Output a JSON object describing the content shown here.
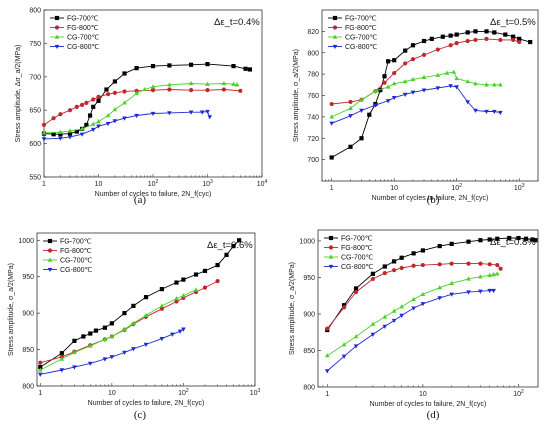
{
  "chart_data": [
    {
      "type": "line",
      "panel_label": "(a)",
      "annotation": "Δε_t=0.4%",
      "xlabel": "Number of cycles to failure, 2N_f(cyc)",
      "ylabel": "Stress amplitude, Δσ_a/2(MPa)",
      "xscale": "log",
      "xlim": [
        1,
        10000
      ],
      "ylim": [
        550,
        800
      ],
      "yticks": [
        550,
        600,
        650,
        700,
        750,
        800
      ],
      "legend_position": "top-left",
      "series": [
        {
          "name": "FG-700℃",
          "color": "#000000",
          "marker": "square",
          "x": [
            1,
            1.5,
            2,
            3,
            4,
            5,
            6,
            7,
            8,
            10,
            14,
            20,
            30,
            50,
            100,
            200,
            500,
            1000,
            3000,
            5000,
            6000
          ],
          "y": [
            615,
            614,
            614,
            615,
            618,
            622,
            628,
            642,
            655,
            664,
            681,
            693,
            705,
            713,
            716,
            717,
            718,
            719,
            716,
            712,
            711
          ]
        },
        {
          "name": "FG-800℃",
          "color": "#c0282d",
          "marker": "circle",
          "x": [
            1,
            1.5,
            2,
            3,
            4,
            5,
            6,
            8,
            10,
            15,
            20,
            30,
            50,
            100,
            200,
            500,
            1000,
            2000,
            4000
          ],
          "y": [
            628,
            638,
            644,
            650,
            655,
            658,
            661,
            666,
            670,
            674,
            676,
            678,
            679,
            680,
            681,
            680,
            680,
            681,
            679
          ]
        },
        {
          "name": "CG-700℃",
          "color": "#4cd02c",
          "marker": "triangle-up",
          "x": [
            1,
            2,
            3,
            5,
            8,
            10,
            15,
            20,
            30,
            50,
            70,
            100,
            200,
            500,
            1000,
            2000,
            3000,
            3500
          ],
          "y": [
            616,
            617,
            619,
            622,
            629,
            633,
            642,
            651,
            661,
            675,
            681,
            685,
            688,
            690,
            689,
            690,
            689,
            688
          ]
        },
        {
          "name": "CG-800℃",
          "color": "#1f2bd1",
          "marker": "triangle-down",
          "x": [
            1,
            2,
            3,
            5,
            8,
            10,
            15,
            20,
            30,
            50,
            100,
            200,
            500,
            800,
            1000,
            1100
          ],
          "y": [
            607,
            608,
            610,
            614,
            621,
            626,
            630,
            634,
            638,
            642,
            645,
            646,
            647,
            647,
            648,
            640
          ]
        }
      ]
    },
    {
      "type": "line",
      "panel_label": "(b)",
      "annotation": "Δε_t=0.5%",
      "xlabel": "Number of cycles to failure, 2N_f(cyc)",
      "ylabel": "Stress amplitude, σ_a/2(MPa)",
      "xscale": "log",
      "xlim": [
        0.7,
        2000
      ],
      "ylim": [
        680,
        840
      ],
      "yticks": [
        700,
        720,
        740,
        760,
        780,
        800,
        820
      ],
      "legend_position": "top-left",
      "series": [
        {
          "name": "FG-700℃",
          "color": "#000000",
          "marker": "square",
          "x": [
            1,
            2,
            3,
            4,
            5,
            6,
            7,
            8,
            10,
            15,
            20,
            30,
            40,
            60,
            80,
            100,
            150,
            200,
            300,
            400,
            600,
            800,
            1000,
            1500
          ],
          "y": [
            702,
            712,
            720,
            742,
            752,
            765,
            778,
            792,
            793,
            802,
            807,
            811,
            813,
            815,
            816,
            817,
            819,
            820,
            820,
            819,
            817,
            815,
            813,
            810
          ]
        },
        {
          "name": "FG-800℃",
          "color": "#c0282d",
          "marker": "circle",
          "x": [
            1,
            2,
            3,
            5,
            7,
            10,
            15,
            20,
            30,
            50,
            80,
            100,
            150,
            200,
            300,
            500,
            800,
            1000
          ],
          "y": [
            752,
            754,
            756,
            764,
            772,
            781,
            790,
            794,
            798,
            803,
            807,
            809,
            811,
            812,
            813,
            812,
            812,
            810
          ]
        },
        {
          "name": "CG-700℃",
          "color": "#4cd02c",
          "marker": "triangle-up",
          "x": [
            1,
            2,
            3,
            5,
            8,
            10,
            15,
            20,
            30,
            50,
            70,
            90,
            100,
            150,
            200,
            300,
            400,
            500
          ],
          "y": [
            740,
            748,
            756,
            764,
            768,
            771,
            773,
            775,
            777,
            779,
            781,
            782,
            776,
            773,
            771,
            770,
            770,
            770
          ]
        },
        {
          "name": "CG-800℃",
          "color": "#1f2bd1",
          "marker": "triangle-down",
          "x": [
            1,
            2,
            3,
            5,
            8,
            10,
            15,
            20,
            30,
            50,
            80,
            100,
            150,
            200,
            300,
            400,
            500
          ],
          "y": [
            734,
            741,
            746,
            751,
            755,
            758,
            761,
            763,
            765,
            767,
            769,
            768,
            754,
            746,
            745,
            745,
            744
          ]
        }
      ]
    },
    {
      "type": "line",
      "panel_label": "(c)",
      "annotation": "Δε_t=0.6%",
      "xlabel": "Number of cycles to failure, 2N_f(cyc)",
      "ylabel": "Stress amplitude, σ_a/2(MPa)",
      "xscale": "log",
      "xlim": [
        0.9,
        1000
      ],
      "ylim": [
        800,
        1010
      ],
      "yticks": [
        800,
        850,
        900,
        950,
        1000
      ],
      "legend_position": "top-left",
      "series": [
        {
          "name": "FG-700℃",
          "color": "#000000",
          "marker": "square",
          "x": [
            1,
            2,
            3,
            4,
            5,
            6,
            8,
            10,
            15,
            20,
            30,
            50,
            80,
            100,
            150,
            200,
            300,
            400,
            500,
            600
          ],
          "y": [
            826,
            845,
            862,
            868,
            872,
            876,
            880,
            886,
            900,
            910,
            922,
            933,
            942,
            946,
            953,
            958,
            966,
            980,
            992,
            1000
          ]
        },
        {
          "name": "FG-800℃",
          "color": "#c0282d",
          "marker": "circle",
          "x": [
            1,
            2,
            3,
            5,
            8,
            10,
            15,
            20,
            30,
            50,
            80,
            100,
            150,
            200,
            300
          ],
          "y": [
            832,
            840,
            847,
            856,
            864,
            868,
            877,
            885,
            895,
            906,
            916,
            921,
            929,
            935,
            944
          ]
        },
        {
          "name": "CG-700℃",
          "color": "#4cd02c",
          "marker": "triangle-up",
          "x": [
            1,
            2,
            3,
            5,
            8,
            10,
            15,
            20,
            30,
            50,
            80,
            100,
            150
          ],
          "y": [
            822,
            837,
            846,
            855,
            864,
            868,
            878,
            886,
            897,
            910,
            920,
            924,
            932
          ]
        },
        {
          "name": "CG-800℃",
          "color": "#1f2bd1",
          "marker": "triangle-down",
          "x": [
            1,
            2,
            3,
            5,
            8,
            10,
            15,
            20,
            30,
            50,
            70,
            90,
            100
          ],
          "y": [
            816,
            822,
            826,
            831,
            837,
            840,
            846,
            851,
            857,
            865,
            871,
            875,
            878
          ]
        }
      ]
    },
    {
      "type": "line",
      "panel_label": "(d)",
      "annotation": "Δε_t=0.8%",
      "xlabel": "Number of cycles to failure, 2N_f(cyc)",
      "ylabel": "Stress amplitude, σ_a/2(MPa)",
      "xscale": "log",
      "xlim": [
        0.8,
        160
      ],
      "ylim": [
        800,
        1015
      ],
      "yticks": [
        800,
        850,
        900,
        950,
        1000
      ],
      "legend_position": "top-left",
      "series": [
        {
          "name": "FG-700℃",
          "color": "#000000",
          "marker": "square",
          "x": [
            1,
            1.5,
            2,
            3,
            4,
            5,
            6,
            8,
            10,
            15,
            20,
            30,
            40,
            50,
            60,
            80,
            100,
            120,
            140,
            150
          ],
          "y": [
            878,
            912,
            935,
            955,
            965,
            972,
            977,
            983,
            987,
            993,
            996,
            999,
            1001,
            1002,
            1003,
            1004,
            1004,
            1003,
            1002,
            1001
          ]
        },
        {
          "name": "FG-800℃",
          "color": "#c0282d",
          "marker": "circle",
          "x": [
            1,
            1.5,
            2,
            3,
            4,
            5,
            6,
            8,
            10,
            15,
            20,
            30,
            40,
            50,
            60,
            65
          ],
          "y": [
            880,
            909,
            930,
            948,
            956,
            960,
            963,
            966,
            967,
            968,
            969,
            969,
            969,
            968,
            967,
            962
          ]
        },
        {
          "name": "CG-700℃",
          "color": "#4cd02c",
          "marker": "triangle-up",
          "x": [
            1,
            1.5,
            2,
            3,
            4,
            5,
            6,
            8,
            10,
            15,
            20,
            30,
            40,
            50,
            55,
            60
          ],
          "y": [
            843,
            858,
            869,
            886,
            896,
            904,
            910,
            920,
            927,
            936,
            942,
            948,
            951,
            953,
            954,
            955
          ]
        },
        {
          "name": "CG-800℃",
          "color": "#1f2bd1",
          "marker": "triangle-down",
          "x": [
            1,
            1.5,
            2,
            3,
            4,
            5,
            6,
            8,
            10,
            15,
            20,
            30,
            40,
            50,
            55
          ],
          "y": [
            822,
            842,
            856,
            872,
            883,
            891,
            898,
            908,
            914,
            922,
            927,
            930,
            931,
            932,
            932
          ]
        }
      ]
    }
  ]
}
